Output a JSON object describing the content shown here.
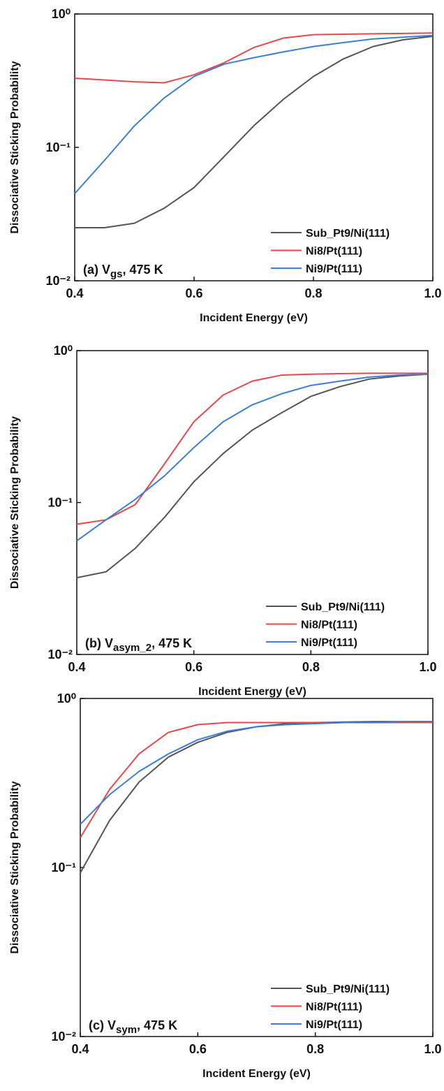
{
  "chart_data": [
    {
      "type": "line",
      "xlabel": "Incident Energy (eV)",
      "ylabel": "Dissociative Sticking Probability",
      "annotation": {
        "text": "(a) V",
        "sub": "gs",
        "after": ", 475 K"
      },
      "x": [
        0.4,
        0.45,
        0.5,
        0.55,
        0.6,
        0.65,
        0.7,
        0.75,
        0.8,
        0.85,
        0.9,
        0.95,
        1.0
      ],
      "series": [
        {
          "name": "Sub_Pt9/Ni(111)",
          "color": "#555555",
          "values": [
            0.025,
            0.025,
            0.027,
            0.035,
            0.05,
            0.085,
            0.145,
            0.23,
            0.34,
            0.46,
            0.57,
            0.64,
            0.68
          ]
        },
        {
          "name": "Ni8/Pt(111)",
          "color": "#e8474c",
          "values": [
            0.33,
            0.32,
            0.31,
            0.305,
            0.35,
            0.43,
            0.56,
            0.66,
            0.7,
            0.705,
            0.71,
            0.715,
            0.72
          ]
        },
        {
          "name": "Ni9/Pt(111)",
          "color": "#3a7fd5",
          "values": [
            0.045,
            0.08,
            0.145,
            0.235,
            0.34,
            0.42,
            0.47,
            0.52,
            0.57,
            0.61,
            0.65,
            0.67,
            0.69
          ]
        }
      ],
      "xlim": [
        0.4,
        1.0
      ],
      "xticks": [
        0.4,
        0.6,
        0.8,
        {
          "value": 1.0,
          "label": "1.0"
        }
      ],
      "ylim": [
        0.01,
        1
      ],
      "yscale": "log",
      "yticks": [
        {
          "value": 0.01,
          "label": "10⁻²"
        },
        {
          "value": 0.1,
          "label": "10⁻¹"
        },
        {
          "value": 1,
          "label": "10⁰"
        }
      ],
      "legend": "lower right"
    },
    {
      "type": "line",
      "xlabel": "Incident Energy (eV)",
      "ylabel": "Dissociative Sticking Probability",
      "annotation": {
        "text": "(b) V",
        "sub": "asym_2",
        "after": ", 475 K"
      },
      "x": [
        0.4,
        0.45,
        0.5,
        0.55,
        0.6,
        0.65,
        0.7,
        0.75,
        0.8,
        0.85,
        0.9,
        0.95,
        1.0
      ],
      "series": [
        {
          "name": "Sub_Pt9/Ni(111)",
          "color": "#555555",
          "values": [
            0.032,
            0.035,
            0.05,
            0.08,
            0.137,
            0.21,
            0.3,
            0.39,
            0.5,
            0.58,
            0.65,
            0.68,
            0.7
          ]
        },
        {
          "name": "Ni8/Pt(111)",
          "color": "#e8474c",
          "values": [
            0.072,
            0.077,
            0.097,
            0.18,
            0.34,
            0.51,
            0.63,
            0.69,
            0.7,
            0.705,
            0.71,
            0.71,
            0.71
          ]
        },
        {
          "name": "Ni9/Pt(111)",
          "color": "#3a7fd5",
          "values": [
            0.056,
            0.077,
            0.105,
            0.15,
            0.23,
            0.34,
            0.44,
            0.52,
            0.59,
            0.63,
            0.67,
            0.69,
            0.7
          ]
        }
      ],
      "xlim": [
        0.4,
        1.0
      ],
      "xticks": [
        0.4,
        0.6,
        0.8,
        {
          "value": 1.0,
          "label": "1.0"
        }
      ],
      "ylim": [
        0.01,
        1
      ],
      "yscale": "log",
      "yticks": [
        {
          "value": 0.01,
          "label": "10⁻²"
        },
        {
          "value": 0.1,
          "label": "10⁻¹"
        },
        {
          "value": 1,
          "label": "10⁰"
        }
      ],
      "legend": "lower right"
    },
    {
      "type": "line",
      "xlabel": "Incident Energy (eV)",
      "ylabel": "Dissociative Sticking Probability",
      "annotation": {
        "text": "(c) V",
        "sub": "sym",
        "after": ", 475 K"
      },
      "x": [
        0.4,
        0.45,
        0.5,
        0.55,
        0.6,
        0.65,
        0.7,
        0.75,
        0.8,
        0.85,
        0.9,
        0.95,
        1.0
      ],
      "series": [
        {
          "name": "Sub_Pt9/Ni(111)",
          "color": "#555555",
          "values": [
            0.093,
            0.19,
            0.32,
            0.45,
            0.55,
            0.63,
            0.68,
            0.71,
            0.72,
            0.725,
            0.73,
            0.73,
            0.73
          ]
        },
        {
          "name": "Ni8/Pt(111)",
          "color": "#e8474c",
          "values": [
            0.15,
            0.29,
            0.47,
            0.63,
            0.7,
            0.72,
            0.72,
            0.72,
            0.72,
            0.72,
            0.72,
            0.72,
            0.72
          ]
        },
        {
          "name": "Ni9/Pt(111)",
          "color": "#3a7fd5",
          "values": [
            0.18,
            0.27,
            0.37,
            0.47,
            0.57,
            0.64,
            0.68,
            0.7,
            0.71,
            0.72,
            0.72,
            0.73,
            0.73
          ]
        }
      ],
      "xlim": [
        0.4,
        1.0
      ],
      "xticks": [
        0.4,
        0.6,
        0.8,
        {
          "value": 1.0,
          "label": "1.0"
        }
      ],
      "ylim": [
        0.01,
        1
      ],
      "yscale": "log",
      "yticks": [
        {
          "value": 0.01,
          "label": "10⁻²"
        },
        {
          "value": 0.1,
          "label": "10⁻¹"
        },
        {
          "value": 1,
          "label": "10⁰"
        }
      ],
      "legend": "lower right"
    }
  ]
}
